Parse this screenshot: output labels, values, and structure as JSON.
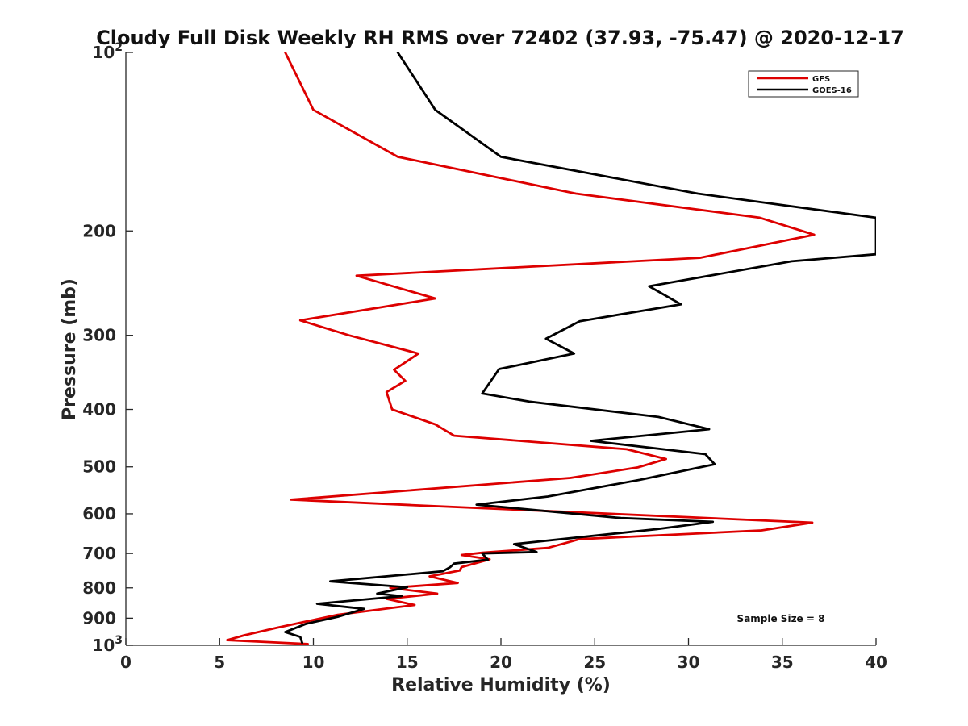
{
  "chart_data": {
    "type": "line",
    "title": "Cloudy Full Disk Weekly RH RMS over 72402 (37.93, -75.47) @ 2020-12-17",
    "xlabel": "Relative Humidity (%)",
    "ylabel": "Pressure (mb)",
    "xlim": [
      0,
      40
    ],
    "ylim": [
      100,
      1000
    ],
    "y_scale": "log",
    "y_reversed": true,
    "x_ticks": [
      "0",
      "5",
      "10",
      "15",
      "20",
      "25",
      "30",
      "35",
      "40"
    ],
    "y_ticks": [
      {
        "value": 100,
        "base": "10",
        "exp": "2"
      },
      {
        "value": 200,
        "label": "200"
      },
      {
        "value": 300,
        "label": "300"
      },
      {
        "value": 400,
        "label": "400"
      },
      {
        "value": 500,
        "label": "500"
      },
      {
        "value": 600,
        "label": "600"
      },
      {
        "value": 700,
        "label": "700"
      },
      {
        "value": 800,
        "label": "800"
      },
      {
        "value": 900,
        "label": "900"
      },
      {
        "value": 1000,
        "base": "10",
        "exp": "3"
      }
    ],
    "legend_position": "top-right",
    "annotation": "Sample Size = 8",
    "series": [
      {
        "name": "GFS",
        "color": "#dd0000",
        "points": [
          [
            8.5,
            100
          ],
          [
            10.0,
            125
          ],
          [
            14.5,
            150
          ],
          [
            24.0,
            173
          ],
          [
            33.8,
            190
          ],
          [
            36.7,
            203
          ],
          [
            30.6,
            222
          ],
          [
            12.3,
            238
          ],
          [
            16.5,
            260
          ],
          [
            9.3,
            283
          ],
          [
            11.9,
            300
          ],
          [
            15.6,
            322
          ],
          [
            14.3,
            343
          ],
          [
            14.9,
            358
          ],
          [
            13.9,
            374
          ],
          [
            14.2,
            400
          ],
          [
            16.5,
            424
          ],
          [
            17.5,
            443
          ],
          [
            26.7,
            467
          ],
          [
            28.8,
            485
          ],
          [
            27.3,
            501
          ],
          [
            23.7,
            522
          ],
          [
            8.8,
            568
          ],
          [
            15.2,
            580
          ],
          [
            36.6,
            621
          ],
          [
            33.9,
            640
          ],
          [
            24.2,
            662
          ],
          [
            22.5,
            685
          ],
          [
            19.0,
            698
          ],
          [
            17.9,
            704
          ],
          [
            19.4,
            716
          ],
          [
            17.9,
            738
          ],
          [
            17.8,
            748
          ],
          [
            16.2,
            765
          ],
          [
            17.7,
            785
          ],
          [
            14.1,
            800
          ],
          [
            16.6,
            818
          ],
          [
            13.9,
            835
          ],
          [
            15.4,
            855
          ],
          [
            11.3,
            888
          ],
          [
            8.0,
            935
          ],
          [
            6.3,
            962
          ],
          [
            5.4,
            980
          ],
          [
            9.7,
            995
          ]
        ]
      },
      {
        "name": "GOES-16",
        "color": "#000000",
        "points": [
          [
            14.5,
            100
          ],
          [
            16.5,
            125
          ],
          [
            20.0,
            150
          ],
          [
            30.5,
            173
          ],
          [
            40.0,
            190
          ],
          [
            40.0,
            219
          ],
          [
            35.5,
            225
          ],
          [
            27.9,
            248
          ],
          [
            29.6,
            266
          ],
          [
            24.2,
            284
          ],
          [
            22.4,
            304
          ],
          [
            23.9,
            322
          ],
          [
            19.9,
            342
          ],
          [
            19.0,
            376
          ],
          [
            21.5,
            388
          ],
          [
            28.4,
            412
          ],
          [
            31.1,
            432
          ],
          [
            24.8,
            452
          ],
          [
            30.9,
            476
          ],
          [
            31.4,
            495
          ],
          [
            27.4,
            526
          ],
          [
            22.5,
            561
          ],
          [
            18.7,
            579
          ],
          [
            26.4,
            610
          ],
          [
            31.3,
            619
          ],
          [
            28.3,
            637
          ],
          [
            20.7,
            675
          ],
          [
            21.9,
            696
          ],
          [
            19.0,
            700
          ],
          [
            19.3,
            717
          ],
          [
            17.5,
            728
          ],
          [
            17.3,
            738
          ],
          [
            16.9,
            750
          ],
          [
            10.9,
            780
          ],
          [
            15.0,
            798
          ],
          [
            13.4,
            818
          ],
          [
            14.7,
            826
          ],
          [
            10.2,
            851
          ],
          [
            12.7,
            868
          ],
          [
            11.3,
            895
          ],
          [
            9.6,
            920
          ],
          [
            8.5,
            950
          ],
          [
            9.3,
            968
          ],
          [
            9.4,
            990
          ]
        ]
      }
    ]
  }
}
